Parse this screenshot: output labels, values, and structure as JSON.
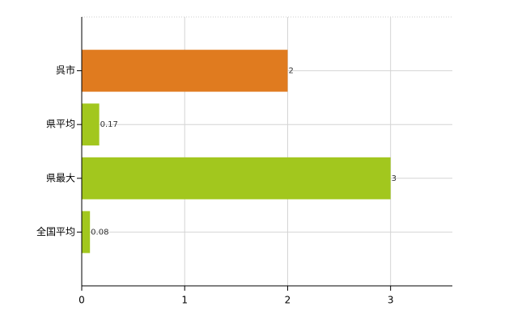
{
  "chart_data": {
    "type": "bar",
    "orientation": "horizontal",
    "categories": [
      "呉市",
      "県平均",
      "県最大",
      "全国平均"
    ],
    "values": [
      2,
      0.17,
      3,
      0.08
    ],
    "colors": [
      "#e07b1f",
      "#a2c71e",
      "#a2c71e",
      "#a2c71e"
    ],
    "xlim": [
      0,
      3.6
    ],
    "xticks": [
      0,
      1,
      2,
      3
    ],
    "grid": true,
    "data_labels": true
  }
}
